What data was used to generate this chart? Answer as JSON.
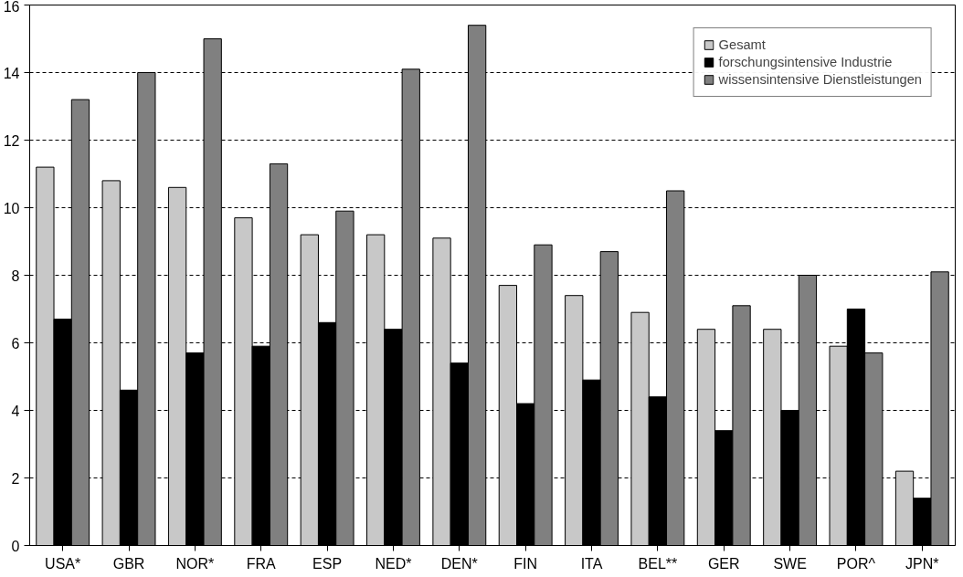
{
  "chart_data": {
    "type": "bar",
    "categories": [
      "USA*",
      "GBR",
      "NOR*",
      "FRA",
      "ESP",
      "NED*",
      "DEN*",
      "FIN",
      "ITA",
      "BEL**",
      "GER",
      "SWE",
      "POR^",
      "JPN*"
    ],
    "series": [
      {
        "name": "Gesamt",
        "color": "#c8c8c8",
        "values": [
          11.2,
          10.8,
          10.6,
          9.7,
          9.2,
          9.2,
          9.1,
          7.7,
          7.4,
          6.9,
          6.4,
          6.4,
          5.9,
          2.2
        ]
      },
      {
        "name": "forschungsintensive Industrie",
        "color": "#000000",
        "values": [
          6.7,
          4.6,
          5.7,
          5.9,
          6.6,
          6.4,
          5.4,
          4.2,
          4.9,
          4.4,
          3.4,
          4.0,
          7.0,
          1.4
        ]
      },
      {
        "name": "wissensintensive Dienstleistungen",
        "color": "#808080",
        "values": [
          13.2,
          14.0,
          15.0,
          11.3,
          9.9,
          14.1,
          15.4,
          8.9,
          8.7,
          10.5,
          7.1,
          8.0,
          5.7,
          8.1
        ]
      }
    ],
    "ylim": [
      0,
      16
    ],
    "yticks": [
      0,
      2,
      4,
      6,
      8,
      10,
      12,
      14,
      16
    ],
    "grid": "y",
    "legend": "top right"
  }
}
